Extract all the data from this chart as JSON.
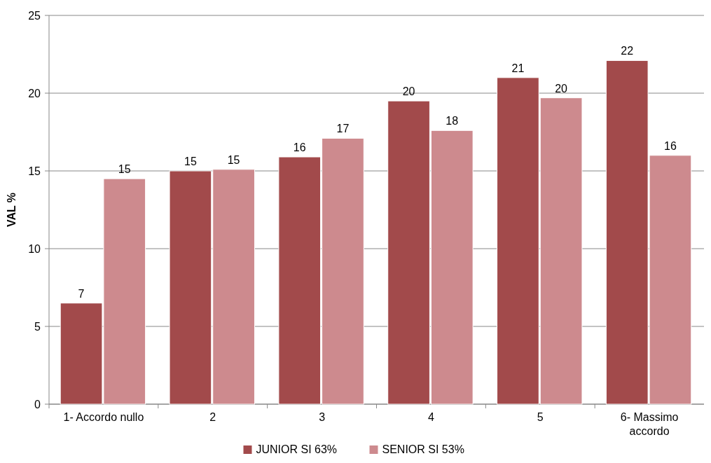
{
  "chart_data": {
    "type": "bar",
    "ylabel": "VAL %",
    "categories": [
      "1- Accordo nullo",
      "2",
      "3",
      "4",
      "5",
      "6- Massimo accordo"
    ],
    "series": [
      {
        "name": "JUNIOR SI 63%",
        "color": "#a24a4b",
        "values": [
          6.5,
          15,
          15.9,
          19.5,
          21,
          22.1
        ],
        "value_labels": [
          "7",
          "15",
          "16",
          "20",
          "21",
          "22"
        ]
      },
      {
        "name": "SENIOR SI 53%",
        "color": "#cd8a8e",
        "values": [
          14.5,
          15.1,
          17.1,
          17.6,
          19.7,
          16
        ],
        "value_labels": [
          "15",
          "15",
          "17",
          "18",
          "20",
          "16"
        ]
      }
    ],
    "ylim": [
      0,
      25
    ],
    "yticks": [
      0,
      5,
      10,
      15,
      20,
      25
    ],
    "grid": "y",
    "legend": "bottom"
  }
}
